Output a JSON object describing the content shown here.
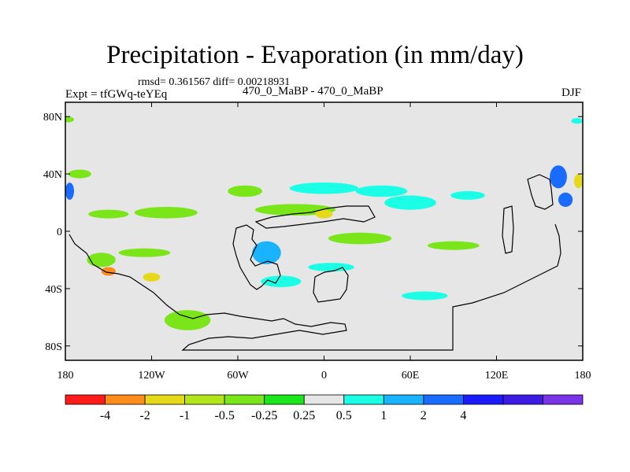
{
  "chart_data": {
    "type": "heatmap",
    "title": "Precipitation - Evaporation (in mm/day)",
    "stats_line": "rmsd= 0.361567 diff= 0.00218931",
    "expt_label": "Expt = tfGWq-teYEq",
    "case_label": "470_0_MaBP - 470_0_MaBP",
    "season": "DJF",
    "xlim": [
      -180,
      180
    ],
    "ylim": [
      -90,
      90
    ],
    "x_ticks": [
      {
        "value": -180,
        "label": "180"
      },
      {
        "value": -120,
        "label": "120W"
      },
      {
        "value": -60,
        "label": "60W"
      },
      {
        "value": 0,
        "label": "0"
      },
      {
        "value": 60,
        "label": "60E"
      },
      {
        "value": 120,
        "label": "120E"
      },
      {
        "value": 180,
        "label": "180"
      }
    ],
    "y_ticks": [
      {
        "value": 80,
        "label": "80N"
      },
      {
        "value": 40,
        "label": "40N"
      },
      {
        "value": 0,
        "label": "0"
      },
      {
        "value": -40,
        "label": "40S"
      },
      {
        "value": -80,
        "label": "80S"
      }
    ],
    "background_color": "#e6e6e6",
    "colorbar": {
      "colors": [
        "#ff1a1a",
        "#ff8c1a",
        "#e6d91a",
        "#b3e61a",
        "#7ae61a",
        "#1ae61a",
        "#e6e6e6",
        "#1affe6",
        "#1ab3ff",
        "#1a6bff",
        "#1a1aff",
        "#3d1ae6",
        "#7a33e6"
      ],
      "boundary_labels": [
        "-4",
        "-2",
        "-1",
        "-0.5",
        "-0.25",
        "0.25",
        "0.5",
        "1",
        "2",
        "4"
      ]
    },
    "anomaly_regions": [
      {
        "lon": -110,
        "lat": 13,
        "rx": 22,
        "ry": 4,
        "level": -0.5
      },
      {
        "lon": -150,
        "lat": 12,
        "rx": 14,
        "ry": 3,
        "level": -0.5
      },
      {
        "lon": -125,
        "lat": -15,
        "rx": 18,
        "ry": 3,
        "level": -0.5
      },
      {
        "lon": -155,
        "lat": -20,
        "rx": 10,
        "ry": 5,
        "level": -0.5
      },
      {
        "lon": -150,
        "lat": -28,
        "rx": 5,
        "ry": 3,
        "level": -4
      },
      {
        "lon": -120,
        "lat": -32,
        "rx": 6,
        "ry": 3,
        "level": -2
      },
      {
        "lon": -95,
        "lat": -62,
        "rx": 16,
        "ry": 7,
        "level": -0.5
      },
      {
        "lon": -20,
        "lat": 15,
        "rx": 28,
        "ry": 4,
        "level": -0.5
      },
      {
        "lon": 0,
        "lat": 12,
        "rx": 6,
        "ry": 3,
        "level": -2
      },
      {
        "lon": -55,
        "lat": 28,
        "rx": 12,
        "ry": 4,
        "level": -0.5
      },
      {
        "lon": 40,
        "lat": 28,
        "rx": 18,
        "ry": 4,
        "level": 0.5
      },
      {
        "lon": 25,
        "lat": -5,
        "rx": 22,
        "ry": 4,
        "level": -0.5
      },
      {
        "lon": 60,
        "lat": 20,
        "rx": 18,
        "ry": 5,
        "level": 0.5
      },
      {
        "lon": -40,
        "lat": -15,
        "rx": 10,
        "ry": 8,
        "level": 1
      },
      {
        "lon": -30,
        "lat": -35,
        "rx": 14,
        "ry": 4,
        "level": 0.5
      },
      {
        "lon": 5,
        "lat": -25,
        "rx": 16,
        "ry": 3,
        "level": 0.5
      },
      {
        "lon": 0,
        "lat": 30,
        "rx": 24,
        "ry": 4,
        "level": 0.5
      },
      {
        "lon": -170,
        "lat": 40,
        "rx": 8,
        "ry": 3,
        "level": -0.5
      },
      {
        "lon": -177,
        "lat": 28,
        "rx": 3,
        "ry": 6,
        "level": 2
      },
      {
        "lon": 163,
        "lat": 38,
        "rx": 6,
        "ry": 8,
        "level": 2
      },
      {
        "lon": 168,
        "lat": 22,
        "rx": 5,
        "ry": 5,
        "level": 2
      },
      {
        "lon": 177,
        "lat": 35,
        "rx": 3,
        "ry": 5,
        "level": -2
      },
      {
        "lon": -178,
        "lat": 78,
        "rx": 4,
        "ry": 2,
        "level": -0.5
      },
      {
        "lon": 176,
        "lat": 77,
        "rx": 4,
        "ry": 2,
        "level": 0.5
      },
      {
        "lon": 90,
        "lat": -10,
        "rx": 18,
        "ry": 3,
        "level": -0.5
      },
      {
        "lon": 70,
        "lat": -45,
        "rx": 16,
        "ry": 3,
        "level": 0.5
      },
      {
        "lon": 100,
        "lat": 25,
        "rx": 12,
        "ry": 3,
        "level": 0.5
      }
    ]
  }
}
